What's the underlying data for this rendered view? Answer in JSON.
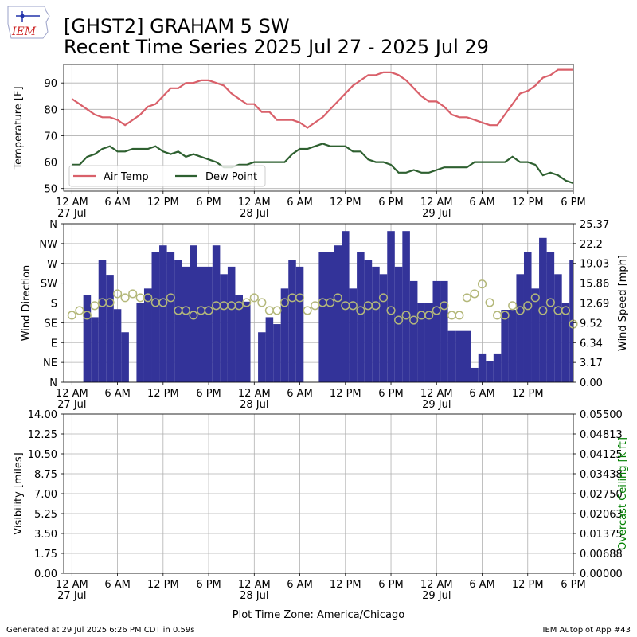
{
  "logo": "IEM",
  "footer": {
    "left": "Generated at 29 Jul 2025 6:26 PM CDT in 0.59s",
    "right": "IEM Autoplot App #43"
  },
  "chart_data": [
    {
      "type": "line",
      "title": "[GHST2] GRAHAM 5 SW",
      "subtitle": "Recent Time Series 2025 Jul 27 - 2025 Jul 29",
      "y_label": "Temperature [F]",
      "grid": true,
      "legend": "lower left",
      "x": [
        "2025-07-27 00:00",
        "2025-07-27 01:00",
        "2025-07-27 02:00",
        "2025-07-27 03:00",
        "2025-07-27 04:00",
        "2025-07-27 05:00",
        "2025-07-27 06:00",
        "2025-07-27 07:00",
        "2025-07-27 08:00",
        "2025-07-27 09:00",
        "2025-07-27 10:00",
        "2025-07-27 11:00",
        "2025-07-27 12:00",
        "2025-07-27 13:00",
        "2025-07-27 14:00",
        "2025-07-27 15:00",
        "2025-07-27 16:00",
        "2025-07-27 17:00",
        "2025-07-27 18:00",
        "2025-07-27 19:00",
        "2025-07-27 20:00",
        "2025-07-27 21:00",
        "2025-07-27 22:00",
        "2025-07-27 23:00",
        "2025-07-28 00:00",
        "2025-07-28 01:00",
        "2025-07-28 02:00",
        "2025-07-28 03:00",
        "2025-07-28 04:00",
        "2025-07-28 05:00",
        "2025-07-28 06:00",
        "2025-07-28 07:00",
        "2025-07-28 08:00",
        "2025-07-28 09:00",
        "2025-07-28 10:00",
        "2025-07-28 11:00",
        "2025-07-28 12:00",
        "2025-07-28 13:00",
        "2025-07-28 14:00",
        "2025-07-28 15:00",
        "2025-07-28 16:00",
        "2025-07-28 17:00",
        "2025-07-28 18:00",
        "2025-07-28 19:00",
        "2025-07-28 20:00",
        "2025-07-28 21:00",
        "2025-07-28 22:00",
        "2025-07-28 23:00",
        "2025-07-29 00:00",
        "2025-07-29 01:00",
        "2025-07-29 02:00",
        "2025-07-29 03:00",
        "2025-07-29 04:00",
        "2025-07-29 05:00",
        "2025-07-29 06:00",
        "2025-07-29 07:00",
        "2025-07-29 08:00",
        "2025-07-29 09:00",
        "2025-07-29 10:00",
        "2025-07-29 11:00",
        "2025-07-29 12:00",
        "2025-07-29 13:00",
        "2025-07-29 14:00",
        "2025-07-29 15:00",
        "2025-07-29 16:00",
        "2025-07-29 17:00",
        "2025-07-29 18:00"
      ],
      "series": [
        {
          "name": "Air Temp",
          "color": "#d9606a",
          "values": [
            84,
            82,
            80,
            78,
            77,
            77,
            76,
            74,
            76,
            78,
            81,
            82,
            85,
            88,
            88,
            90,
            90,
            91,
            91,
            90,
            89,
            86,
            84,
            82,
            82,
            79,
            79,
            76,
            76,
            76,
            75,
            73,
            75,
            77,
            80,
            83,
            86,
            89,
            91,
            93,
            93,
            94,
            94,
            93,
            91,
            88,
            85,
            83,
            83,
            81,
            78,
            77,
            77,
            76,
            75,
            74,
            74,
            78,
            82,
            86,
            87,
            89,
            92,
            93,
            95,
            95,
            95
          ]
        },
        {
          "name": "Dew Point",
          "color": "#2e6030",
          "values": [
            59,
            59,
            62,
            63,
            65,
            66,
            64,
            64,
            65,
            65,
            65,
            66,
            64,
            63,
            64,
            62,
            63,
            62,
            61,
            60,
            58,
            58,
            59,
            59,
            60,
            60,
            60,
            60,
            60,
            63,
            65,
            65,
            66,
            67,
            66,
            66,
            66,
            64,
            64,
            61,
            60,
            60,
            59,
            56,
            56,
            57,
            56,
            56,
            57,
            58,
            58,
            58,
            58,
            60,
            60,
            60,
            60,
            60,
            62,
            60,
            60,
            59,
            55,
            56,
            55,
            53,
            52
          ]
        }
      ],
      "xlim": [
        "2025-07-26 22:55",
        "2025-07-29 18:00"
      ],
      "ylim": [
        49,
        97
      ],
      "yticks": [
        50,
        60,
        70,
        80,
        90
      ],
      "xticks": [
        {
          "value": "2025-07-27 00:00",
          "label": "12 AM\n27 Jul"
        },
        {
          "value": "2025-07-27 06:00",
          "label": "6 AM"
        },
        {
          "value": "2025-07-27 12:00",
          "label": "12 PM"
        },
        {
          "value": "2025-07-27 18:00",
          "label": "6 PM"
        },
        {
          "value": "2025-07-28 00:00",
          "label": "12 AM\n28 Jul"
        },
        {
          "value": "2025-07-28 06:00",
          "label": "6 AM"
        },
        {
          "value": "2025-07-28 12:00",
          "label": "12 PM"
        },
        {
          "value": "2025-07-28 18:00",
          "label": "6 PM"
        },
        {
          "value": "2025-07-29 00:00",
          "label": "12 AM\n29 Jul"
        },
        {
          "value": "2025-07-29 06:00",
          "label": "6 AM"
        },
        {
          "value": "2025-07-29 12:00",
          "label": "12 PM"
        },
        {
          "value": "2025-07-29 18:00",
          "label": "6 PM"
        }
      ]
    },
    {
      "type": "combo",
      "y_label": "Wind Direction",
      "y2_label": "Wind Speed [mph]",
      "grid": true,
      "x": [
        "2025-07-27 00:00",
        "2025-07-27 01:00",
        "2025-07-27 02:00",
        "2025-07-27 03:00",
        "2025-07-27 04:00",
        "2025-07-27 05:00",
        "2025-07-27 06:00",
        "2025-07-27 07:00",
        "2025-07-27 08:00",
        "2025-07-27 09:00",
        "2025-07-27 10:00",
        "2025-07-27 11:00",
        "2025-07-27 12:00",
        "2025-07-27 13:00",
        "2025-07-27 14:00",
        "2025-07-27 15:00",
        "2025-07-27 16:00",
        "2025-07-27 17:00",
        "2025-07-27 18:00",
        "2025-07-27 19:00",
        "2025-07-27 20:00",
        "2025-07-27 21:00",
        "2025-07-27 22:00",
        "2025-07-27 23:00",
        "2025-07-28 00:00",
        "2025-07-28 01:00",
        "2025-07-28 02:00",
        "2025-07-28 03:00",
        "2025-07-28 04:00",
        "2025-07-28 05:00",
        "2025-07-28 06:00",
        "2025-07-28 07:00",
        "2025-07-28 08:00",
        "2025-07-28 09:00",
        "2025-07-28 10:00",
        "2025-07-28 11:00",
        "2025-07-28 12:00",
        "2025-07-28 13:00",
        "2025-07-28 14:00",
        "2025-07-28 15:00",
        "2025-07-28 16:00",
        "2025-07-28 17:00",
        "2025-07-28 18:00",
        "2025-07-28 19:00",
        "2025-07-28 20:00",
        "2025-07-28 21:00",
        "2025-07-28 22:00",
        "2025-07-28 23:00",
        "2025-07-29 00:00",
        "2025-07-29 01:00",
        "2025-07-29 02:00",
        "2025-07-29 03:00",
        "2025-07-29 04:00",
        "2025-07-29 05:00",
        "2025-07-29 06:00",
        "2025-07-29 07:00",
        "2025-07-29 08:00",
        "2025-07-29 09:00",
        "2025-07-29 10:00",
        "2025-07-29 11:00",
        "2025-07-29 12:00",
        "2025-07-29 13:00",
        "2025-07-29 14:00",
        "2025-07-29 15:00",
        "2025-07-29 16:00",
        "2025-07-29 17:00",
        "2025-07-29 18:00"
      ],
      "series": [
        {
          "type": "bar",
          "axis": "y2",
          "color": "#333399",
          "values": [
            0,
            0,
            13.9,
            10.4,
            19.6,
            17.2,
            11.7,
            8.0,
            0,
            12.7,
            15.0,
            20.9,
            21.9,
            20.9,
            19.6,
            18.5,
            21.9,
            18.5,
            18.5,
            21.9,
            17.3,
            18.5,
            13.9,
            12.9,
            0,
            8.0,
            10.4,
            9.3,
            15.0,
            19.6,
            18.5,
            0,
            0,
            20.9,
            20.9,
            21.9,
            24.2,
            15.0,
            20.9,
            19.6,
            18.5,
            17.3,
            24.2,
            18.5,
            24.2,
            16.2,
            12.7,
            12.7,
            16.2,
            16.2,
            8.2,
            8.2,
            8.2,
            2.3,
            4.6,
            3.4,
            4.6,
            11.6,
            11.6,
            17.3,
            20.9,
            15.0,
            23.1,
            20.9,
            17.3,
            12.7,
            19.6
          ]
        },
        {
          "type": "scatter",
          "color": "#b4b87a",
          "values": [
            152,
            163,
            152,
            174,
            181,
            181,
            201,
            192,
            201,
            192,
            192,
            181,
            181,
            192,
            163,
            163,
            152,
            163,
            163,
            174,
            174,
            174,
            174,
            181,
            192,
            181,
            163,
            163,
            181,
            192,
            192,
            163,
            174,
            181,
            181,
            192,
            174,
            174,
            163,
            174,
            174,
            192,
            163,
            141,
            152,
            141,
            152,
            152,
            163,
            174,
            152,
            152,
            192,
            201,
            223,
            181,
            152,
            152,
            174,
            163,
            174,
            192,
            163,
            181,
            163,
            163,
            132
          ]
        }
      ],
      "xlim": [
        "2025-07-26 22:55",
        "2025-07-29 18:00"
      ],
      "ylim": [
        0,
        360
      ],
      "y2lim": [
        0,
        25.37
      ],
      "yticks": [
        {
          "value": 0,
          "label": "N"
        },
        {
          "value": 45,
          "label": "NE"
        },
        {
          "value": 90,
          "label": "E"
        },
        {
          "value": 135,
          "label": "SE"
        },
        {
          "value": 180,
          "label": "S"
        },
        {
          "value": 225,
          "label": "SW"
        },
        {
          "value": 270,
          "label": "W"
        },
        {
          "value": 315,
          "label": "NW"
        },
        {
          "value": 360,
          "label": "N"
        }
      ],
      "y2ticks": [
        {
          "value": 0,
          "label": "0.00"
        },
        3.17,
        6.34,
        9.52,
        12.69,
        15.86,
        19.03,
        22.2,
        25.37
      ],
      "xticks": [
        {
          "value": "2025-07-27 00:00",
          "label": "12 AM\n27 Jul"
        },
        {
          "value": "2025-07-27 06:00",
          "label": "6 AM"
        },
        {
          "value": "2025-07-27 12:00",
          "label": "12 PM"
        },
        {
          "value": "2025-07-27 18:00",
          "label": "6 PM"
        },
        {
          "value": "2025-07-28 00:00",
          "label": "12 AM\n28 Jul"
        },
        {
          "value": "2025-07-28 06:00",
          "label": "6 AM"
        },
        {
          "value": "2025-07-28 12:00",
          "label": "12 PM"
        },
        {
          "value": "2025-07-28 18:00",
          "label": "6 PM"
        },
        {
          "value": "2025-07-29 00:00",
          "label": "12 AM\n29 Jul"
        },
        {
          "value": "2025-07-29 06:00",
          "label": "6 AM"
        },
        {
          "value": "2025-07-29 12:00",
          "label": "12 PM"
        }
      ]
    },
    {
      "type": "line",
      "y_label": "Visibility [miles]",
      "y2_label": "Overcast Ceiling [k ft]",
      "y2_color": "#008000",
      "x_label": "Plot Time Zone: America/Chicago",
      "grid": true,
      "xlim": [
        "2025-07-26 22:55",
        "2025-07-29 18:00"
      ],
      "ylim": [
        0,
        14
      ],
      "y2lim": [
        0,
        0.055
      ],
      "yticks": [
        {
          "value": 0,
          "label": "0.00"
        },
        {
          "value": 1.75,
          "label": "1.75"
        },
        {
          "value": 3.5,
          "label": "3.50"
        },
        {
          "value": 5.25,
          "label": "5.25"
        },
        {
          "value": 7,
          "label": "7.00"
        },
        {
          "value": 8.75,
          "label": "8.75"
        },
        {
          "value": 10.5,
          "label": "10.50"
        },
        {
          "value": 12.25,
          "label": "12.25"
        },
        {
          "value": 14,
          "label": "14.00"
        }
      ],
      "y2ticks": [
        {
          "value": 0,
          "label": "0.00000"
        },
        {
          "value": 0.006875,
          "label": "0.00688"
        },
        {
          "value": 0.01375,
          "label": "0.01375"
        },
        {
          "value": 0.020625,
          "label": "0.02063"
        },
        {
          "value": 0.0275,
          "label": "0.02750"
        },
        {
          "value": 0.034375,
          "label": "0.03438"
        },
        {
          "value": 0.04125,
          "label": "0.04125"
        },
        {
          "value": 0.048125,
          "label": "0.04813"
        },
        {
          "value": 0.055,
          "label": "0.05500"
        }
      ],
      "xticks": [
        {
          "value": "2025-07-27 00:00",
          "label": "12 AM\n27 Jul"
        },
        {
          "value": "2025-07-27 06:00",
          "label": "6 AM"
        },
        {
          "value": "2025-07-27 12:00",
          "label": "12 PM"
        },
        {
          "value": "2025-07-27 18:00",
          "label": "6 PM"
        },
        {
          "value": "2025-07-28 00:00",
          "label": "12 AM\n28 Jul"
        },
        {
          "value": "2025-07-28 06:00",
          "label": "6 AM"
        },
        {
          "value": "2025-07-28 12:00",
          "label": "12 PM"
        },
        {
          "value": "2025-07-28 18:00",
          "label": "6 PM"
        },
        {
          "value": "2025-07-29 00:00",
          "label": "12 AM\n29 Jul"
        },
        {
          "value": "2025-07-29 06:00",
          "label": "6 AM"
        },
        {
          "value": "2025-07-29 12:00",
          "label": "12 PM"
        },
        {
          "value": "2025-07-29 18:00",
          "label": "6 PM"
        }
      ]
    }
  ]
}
